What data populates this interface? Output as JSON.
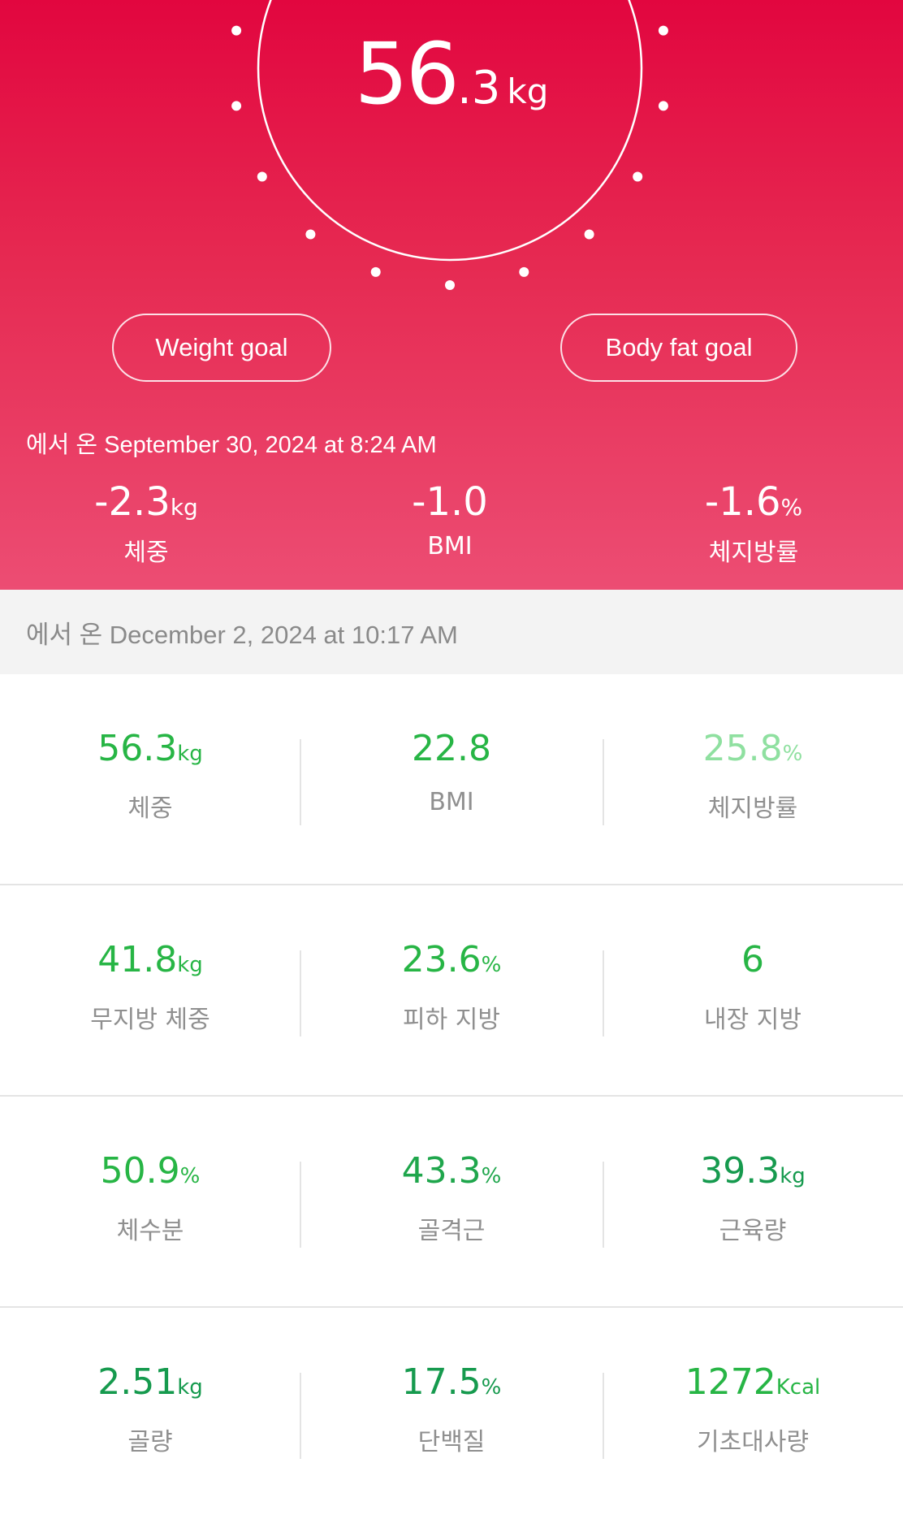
{
  "colors": {
    "hero_top": "#e2063f",
    "hero_bottom": "#ec4d73",
    "value_green": "#27b545",
    "value_light_green": "#8fe0a0",
    "value_dark_green": "#169a4e"
  },
  "current_weight": {
    "int": "56",
    "dec": ".3",
    "unit": "kg"
  },
  "goals": {
    "weight_label": "Weight goal",
    "body_fat_label": "Body fat goal"
  },
  "since_date": "에서 온 September 30, 2024 at 8:24 AM",
  "deltas": [
    {
      "value": "-2.3",
      "unit": "kg",
      "label": "체중"
    },
    {
      "value": "-1.0",
      "unit": "",
      "label": "BMI"
    },
    {
      "value": "-1.6",
      "unit": "%",
      "label": "체지방률"
    }
  ],
  "measurement_date": "에서 온 December 2, 2024 at 10:17 AM",
  "metrics": [
    [
      {
        "value": "56.3",
        "unit": "kg",
        "label": "체중",
        "color": "#27b545"
      },
      {
        "value": "22.8",
        "unit": "",
        "label": "BMI",
        "color": "#27b545"
      },
      {
        "value": "25.8",
        "unit": "%",
        "label": "체지방률",
        "color": "#8fe0a0"
      }
    ],
    [
      {
        "value": "41.8",
        "unit": "kg",
        "label": "무지방 체중",
        "color": "#27b545"
      },
      {
        "value": "23.6",
        "unit": "%",
        "label": "피하 지방",
        "color": "#27b545"
      },
      {
        "value": "6",
        "unit": "",
        "label": "내장 지방",
        "color": "#27b545"
      }
    ],
    [
      {
        "value": "50.9",
        "unit": "%",
        "label": "체수분",
        "color": "#27b545"
      },
      {
        "value": "43.3",
        "unit": "%",
        "label": "골격근",
        "color": "#1fa64c"
      },
      {
        "value": "39.3",
        "unit": "kg",
        "label": "근육량",
        "color": "#169a4e"
      }
    ],
    [
      {
        "value": "2.51",
        "unit": "kg",
        "label": "골량",
        "color": "#169a4e"
      },
      {
        "value": "17.5",
        "unit": "%",
        "label": "단백질",
        "color": "#169a4e"
      },
      {
        "value": "1272",
        "unit": "Kcal",
        "label": "기초대사량",
        "color": "#27b545"
      }
    ]
  ]
}
